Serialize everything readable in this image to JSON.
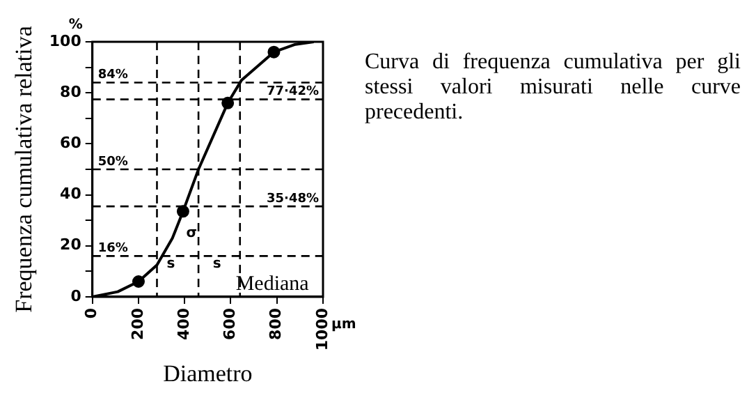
{
  "chart_data": {
    "type": "line",
    "xlabel": "Diametro",
    "ylabel": "Frequenza cumulativa relativa",
    "x": [
      0,
      110,
      200,
      280,
      347,
      393,
      460,
      587,
      647,
      787,
      880,
      960
    ],
    "series": [
      {
        "color": "#000000",
        "marker": "none",
        "values": [
          0,
          2,
          6,
          12.5,
          23,
          33.5,
          50,
          76,
          85,
          96,
          99,
          100
        ]
      },
      {
        "type": "scatter",
        "color": "#000000",
        "marker": "circle",
        "x": [
          200,
          393,
          587,
          787
        ],
        "values": [
          6,
          33.5,
          76,
          96
        ]
      }
    ],
    "xlim": [
      0,
      1000
    ],
    "xticks": [
      0,
      200,
      400,
      600,
      800,
      1000
    ],
    "ylim": [
      0,
      100
    ],
    "yticks": [
      0,
      {
        "value": 10,
        "label": null
      },
      20,
      {
        "value": 30,
        "label": null
      },
      40,
      {
        "value": 50,
        "label": null
      },
      60,
      {
        "value": 70,
        "label": null
      },
      80,
      {
        "value": 90,
        "label": null
      },
      100
    ],
    "grid": false,
    "legend": false,
    "ref_lines": [
      {
        "axis": "y",
        "value": 84,
        "label": "84%",
        "line_style": "dashed",
        "color": "#000000"
      },
      {
        "axis": "y",
        "value": 50,
        "label": "50%",
        "line_style": "dashed",
        "color": "#000000"
      },
      {
        "axis": "y",
        "value": 16,
        "label": "16%",
        "line_style": "dashed",
        "color": "#000000"
      },
      {
        "axis": "y",
        "value": 35.48,
        "label": "35·48%",
        "line_style": "dashed",
        "color": "#000000"
      },
      {
        "axis": "y",
        "value": 77.42,
        "label": "77·42%",
        "line_style": "dashed",
        "color": "#000000"
      },
      {
        "axis": "x",
        "value": 280,
        "line_style": "dashed",
        "color": "#000000"
      },
      {
        "axis": "x",
        "value": 460,
        "line_style": "dashed",
        "color": "#000000"
      },
      {
        "axis": "x",
        "value": 640,
        "line_style": "dashed",
        "color": "#000000"
      }
    ],
    "annotations": [
      "Curva di frequenza cumulativa per gli stessi valori misurati nelle curve precedenti.",
      "%",
      "µm",
      "s",
      "s",
      "σ",
      "Mediana"
    ]
  }
}
